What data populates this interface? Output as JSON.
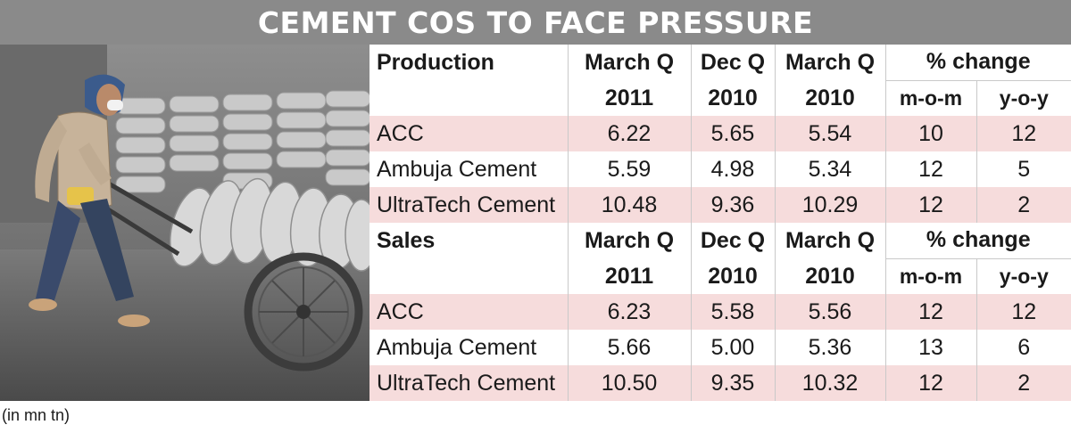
{
  "title": "CEMENT COS TO FACE PRESSURE",
  "footnote": "(in mn tn)",
  "photo": {
    "icon": "cement-worker-photo"
  },
  "chart_data": [
    {
      "type": "table",
      "section": "Production",
      "columns": [
        {
          "line1": "March Q",
          "line2": "2011"
        },
        {
          "line1": "Dec Q",
          "line2": "2010"
        },
        {
          "line1": "March Q",
          "line2": "2010"
        }
      ],
      "change_header": "% change",
      "change_cols": [
        "m-o-m",
        "y-o-y"
      ],
      "rows": [
        {
          "company": "ACC",
          "values": [
            "6.22",
            "5.65",
            "5.54",
            "10",
            "12"
          ]
        },
        {
          "company": "Ambuja Cement",
          "values": [
            "5.59",
            "4.98",
            "5.34",
            "12",
            "5"
          ]
        },
        {
          "company": "UltraTech Cement",
          "values": [
            "10.48",
            "9.36",
            "10.29",
            "12",
            "2"
          ]
        }
      ]
    },
    {
      "type": "table",
      "section": "Sales",
      "columns": [
        {
          "line1": "March Q",
          "line2": "2011"
        },
        {
          "line1": "Dec Q",
          "line2": "2010"
        },
        {
          "line1": "March Q",
          "line2": "2010"
        }
      ],
      "change_header": "% change",
      "change_cols": [
        "m-o-m",
        "y-o-y"
      ],
      "rows": [
        {
          "company": "ACC",
          "values": [
            "6.23",
            "5.58",
            "5.56",
            "12",
            "12"
          ]
        },
        {
          "company": "Ambuja Cement",
          "values": [
            "5.66",
            "5.00",
            "5.36",
            "13",
            "6"
          ]
        },
        {
          "company": "UltraTech Cement",
          "values": [
            "10.50",
            "9.35",
            "10.32",
            "12",
            "2"
          ]
        }
      ]
    }
  ]
}
